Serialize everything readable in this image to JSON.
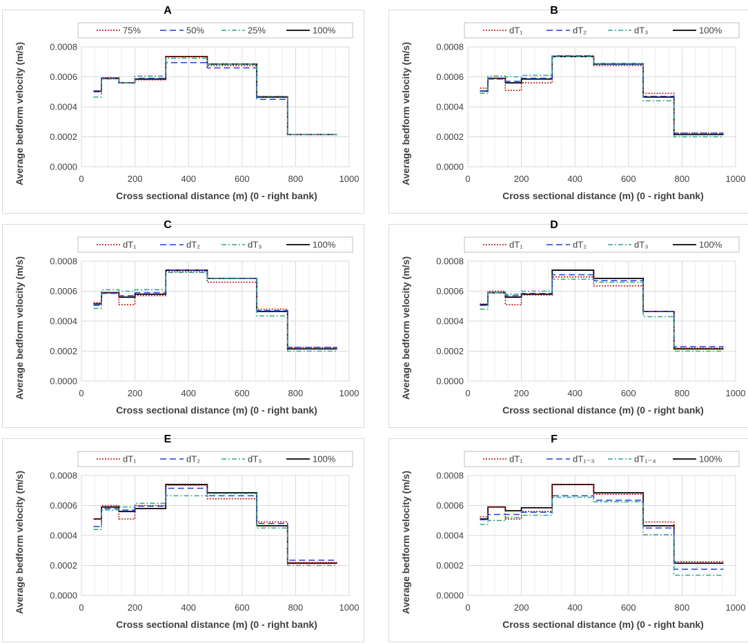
{
  "colors": {
    "series_1": "#c00000",
    "series_2": "#1f3fd6",
    "series_3": "#2ca58d",
    "series_4": "#000000",
    "grid": "#d9d9d9",
    "text": "#404040"
  },
  "chart_data": [
    {
      "panel": "A",
      "type": "line",
      "step": true,
      "xlabel": "Cross sectional distance (m) (0 - right bank)",
      "ylabel": "Average bedform velocity (m/s)",
      "xlim": [
        0,
        1000
      ],
      "ylim": [
        0,
        0.0008
      ],
      "x_ticks": [
        "0",
        "200",
        "400",
        "600",
        "800",
        "1000"
      ],
      "y_ticks": [
        "0.0000",
        "0.0002",
        "0.0004",
        "0.0006",
        "0.0008"
      ],
      "grid": true,
      "legend_position": "top",
      "x_edges": [
        45,
        75,
        140,
        200,
        315,
        470,
        655,
        770,
        955
      ],
      "series": [
        {
          "name": "75%",
          "style": "dotted",
          "values": [
            0.000505,
            0.000595,
            0.00056,
            0.00058,
            0.000735,
            0.000675,
            0.00047,
            0.000215
          ]
        },
        {
          "name": "50%",
          "style": "dashed",
          "values": [
            0.0005,
            0.00059,
            0.00056,
            0.00059,
            0.000695,
            0.00066,
            0.00045,
            0.000215
          ]
        },
        {
          "name": "25%",
          "style": "dashdot",
          "values": [
            0.000465,
            0.000585,
            0.00056,
            0.000605,
            0.000725,
            0.000685,
            0.00047,
            0.000215
          ]
        },
        {
          "name": "100%",
          "style": "solid",
          "values": [
            0.000505,
            0.00059,
            0.00056,
            0.000585,
            0.000735,
            0.000685,
            0.000465,
            0.000215
          ]
        }
      ]
    },
    {
      "panel": "B",
      "type": "line",
      "step": true,
      "xlabel": "Cross sectional distance (m) (0 - right bank)",
      "ylabel": "Average bedform velocity (m/s)",
      "xlim": [
        0,
        1000
      ],
      "ylim": [
        0,
        0.0008
      ],
      "x_ticks": [
        "0",
        "200",
        "400",
        "600",
        "800",
        "1000"
      ],
      "y_ticks": [
        "0.0000",
        "0.0002",
        "0.0004",
        "0.0006",
        "0.0008"
      ],
      "grid": true,
      "legend_position": "top",
      "x_edges": [
        45,
        75,
        140,
        200,
        315,
        470,
        655,
        770,
        955
      ],
      "series": [
        {
          "name": "dT₁",
          "style": "dotted",
          "values": [
            0.000525,
            0.00059,
            0.00051,
            0.00056,
            0.00074,
            0.000675,
            0.00049,
            0.000225
          ]
        },
        {
          "name": "dT₂",
          "style": "dashed",
          "values": [
            0.000505,
            0.000585,
            0.00057,
            0.00059,
            0.00074,
            0.000685,
            0.00047,
            0.000225
          ]
        },
        {
          "name": "dT₃",
          "style": "dashdot",
          "values": [
            0.00049,
            0.000605,
            0.0006,
            0.00061,
            0.000735,
            0.00069,
            0.00044,
            0.0002
          ]
        },
        {
          "name": "100%",
          "style": "solid",
          "values": [
            0.000505,
            0.00059,
            0.00056,
            0.000585,
            0.000735,
            0.000685,
            0.000465,
            0.000215
          ]
        }
      ]
    },
    {
      "panel": "C",
      "type": "line",
      "step": true,
      "xlabel": "Cross sectional distance (m) (0 - right bank)",
      "ylabel": "Average bedform velocity (m/s)",
      "xlim": [
        0,
        1000
      ],
      "ylim": [
        0,
        0.0008
      ],
      "x_ticks": [
        "0",
        "200",
        "400",
        "600",
        "800",
        "1000"
      ],
      "y_ticks": [
        "0.0000",
        "0.0002",
        "0.0004",
        "0.0006",
        "0.0008"
      ],
      "grid": true,
      "legend_position": "top",
      "x_edges": [
        45,
        75,
        140,
        200,
        315,
        470,
        655,
        770,
        955
      ],
      "series": [
        {
          "name": "dT₁",
          "style": "dotted",
          "values": [
            0.000525,
            0.00059,
            0.00051,
            0.00057,
            0.00073,
            0.00066,
            0.00048,
            0.000225
          ]
        },
        {
          "name": "dT₂",
          "style": "dashed",
          "values": [
            0.000505,
            0.000585,
            0.00057,
            0.00059,
            0.00074,
            0.000685,
            0.00047,
            0.000225
          ]
        },
        {
          "name": "dT₃",
          "style": "dashdot",
          "values": [
            0.000485,
            0.00061,
            0.0006,
            0.00061,
            0.000725,
            0.000685,
            0.000435,
            0.0002
          ]
        },
        {
          "name": "100%",
          "style": "solid",
          "values": [
            0.000515,
            0.00059,
            0.00056,
            0.00058,
            0.00074,
            0.000685,
            0.000465,
            0.000215
          ]
        }
      ]
    },
    {
      "panel": "D",
      "type": "line",
      "step": true,
      "xlabel": "Cross sectional distance (m) (0 - right bank)",
      "ylabel": "Average bedform velocity (m/s)",
      "xlim": [
        0,
        1000
      ],
      "ylim": [
        0,
        0.0008
      ],
      "x_ticks": [
        "0",
        "200",
        "400",
        "600",
        "800",
        "1000"
      ],
      "y_ticks": [
        "0.0000",
        "0.0002",
        "0.0004",
        "0.0006",
        "0.0008"
      ],
      "grid": true,
      "legend_position": "top",
      "x_edges": [
        45,
        75,
        140,
        200,
        315,
        470,
        655,
        770,
        955
      ],
      "series": [
        {
          "name": "dT₁",
          "style": "dotted",
          "values": [
            0.000515,
            0.0006,
            0.00051,
            0.000575,
            0.000695,
            0.000635,
            0.000465,
            0.00022
          ]
        },
        {
          "name": "dT₂",
          "style": "dashed",
          "values": [
            0.000505,
            0.00059,
            0.00057,
            0.000585,
            0.00071,
            0.00067,
            0.000465,
            0.00023
          ]
        },
        {
          "name": "dT₃",
          "style": "dashdot",
          "values": [
            0.00048,
            0.00059,
            0.00058,
            0.0006,
            0.00068,
            0.00066,
            0.00043,
            0.0002
          ]
        },
        {
          "name": "100%",
          "style": "solid",
          "values": [
            0.00051,
            0.00059,
            0.00056,
            0.00058,
            0.00074,
            0.000685,
            0.000465,
            0.000215
          ]
        }
      ]
    },
    {
      "panel": "E",
      "type": "line",
      "step": true,
      "xlabel": "Cross sectional distance (m) (0 - right bank)",
      "ylabel": "Average bedform velocity (m/s)",
      "xlim": [
        0,
        1000
      ],
      "ylim": [
        0,
        0.0008
      ],
      "x_ticks": [
        "0",
        "200",
        "400",
        "600",
        "800",
        "1000"
      ],
      "y_ticks": [
        "0.0000",
        "0.0002",
        "0.0004",
        "0.0006",
        "0.0008"
      ],
      "grid": true,
      "legend_position": "top",
      "x_edges": [
        45,
        75,
        140,
        200,
        315,
        470,
        655,
        770,
        955
      ],
      "series": [
        {
          "name": "dT₁",
          "style": "dotted",
          "values": [
            0.00051,
            0.0006,
            0.00051,
            0.0006,
            0.000735,
            0.000645,
            0.00049,
            0.00022
          ]
        },
        {
          "name": "dT₂",
          "style": "dashed",
          "values": [
            0.00046,
            0.00058,
            0.00057,
            0.000595,
            0.000715,
            0.000665,
            0.00048,
            0.000235
          ]
        },
        {
          "name": "dT₃",
          "style": "dashdot",
          "values": [
            0.00044,
            0.00057,
            0.00059,
            0.000615,
            0.000665,
            0.00068,
            0.00045,
            0.0002
          ]
        },
        {
          "name": "100%",
          "style": "solid",
          "values": [
            0.00051,
            0.00059,
            0.00056,
            0.00058,
            0.00074,
            0.000685,
            0.000465,
            0.000215
          ]
        }
      ]
    },
    {
      "panel": "F",
      "type": "line",
      "step": true,
      "xlabel": "Cross sectional distance (m) (0 - right bank)",
      "ylabel": "Average bedform velocity (m/s)",
      "xlim": [
        0,
        1000
      ],
      "ylim": [
        0,
        0.0008
      ],
      "x_ticks": [
        "0",
        "200",
        "400",
        "600",
        "800",
        "1000"
      ],
      "y_ticks": [
        "0.0000",
        "0.0002",
        "0.0004",
        "0.0006",
        "0.0008"
      ],
      "grid": true,
      "legend_position": "top",
      "x_edges": [
        45,
        75,
        140,
        200,
        315,
        470,
        655,
        770,
        955
      ],
      "series": [
        {
          "name": "dT₁",
          "style": "dotted",
          "values": [
            0.000525,
            0.00059,
            0.00051,
            0.00056,
            0.00074,
            0.000675,
            0.00049,
            0.000225
          ]
        },
        {
          "name": "dT₁₋₃",
          "style": "dashed",
          "values": [
            0.000505,
            0.00054,
            0.00054,
            0.000555,
            0.000665,
            0.000635,
            0.00045,
            0.000175
          ]
        },
        {
          "name": "dT₁₋₄",
          "style": "dashdot",
          "values": [
            0.000475,
            0.0005,
            0.00052,
            0.000535,
            0.000655,
            0.000625,
            0.000405,
            0.000135
          ]
        },
        {
          "name": "100%",
          "style": "solid",
          "values": [
            0.00051,
            0.00059,
            0.000565,
            0.000585,
            0.00074,
            0.000685,
            0.000465,
            0.000215
          ]
        }
      ]
    }
  ]
}
